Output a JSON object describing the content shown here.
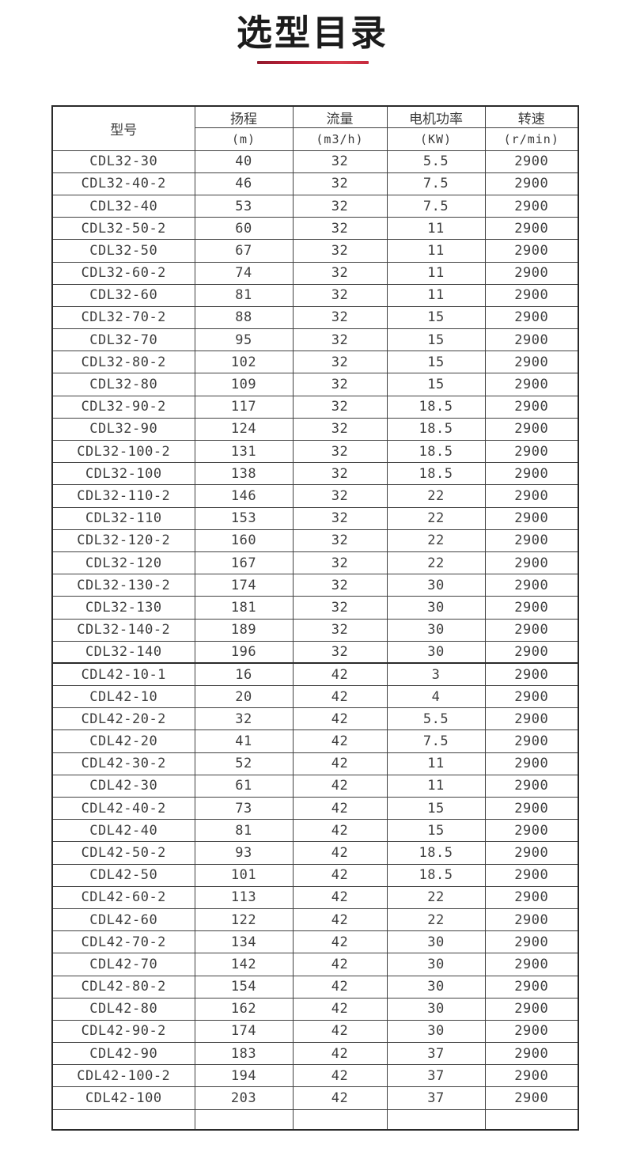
{
  "page": {
    "title": "选型目录",
    "accent_color": "#c01f38"
  },
  "table": {
    "headers": {
      "model": {
        "label": "型号"
      },
      "head": {
        "label": "扬程",
        "unit": "(m)"
      },
      "flow": {
        "label": "流量",
        "unit": "(m3/h)"
      },
      "power": {
        "label": "电机功率",
        "unit": "(KW)"
      },
      "speed": {
        "label": "转速",
        "unit": "(r/min)"
      }
    },
    "rows": [
      {
        "model": "CDL32-30",
        "head": "40",
        "flow": "32",
        "power": "5.5",
        "speed": "2900"
      },
      {
        "model": "CDL32-40-2",
        "head": "46",
        "flow": "32",
        "power": "7.5",
        "speed": "2900"
      },
      {
        "model": "CDL32-40",
        "head": "53",
        "flow": "32",
        "power": "7.5",
        "speed": "2900"
      },
      {
        "model": "CDL32-50-2",
        "head": "60",
        "flow": "32",
        "power": "11",
        "speed": "2900"
      },
      {
        "model": "CDL32-50",
        "head": "67",
        "flow": "32",
        "power": "11",
        "speed": "2900"
      },
      {
        "model": "CDL32-60-2",
        "head": "74",
        "flow": "32",
        "power": "11",
        "speed": "2900"
      },
      {
        "model": "CDL32-60",
        "head": "81",
        "flow": "32",
        "power": "11",
        "speed": "2900"
      },
      {
        "model": "CDL32-70-2",
        "head": "88",
        "flow": "32",
        "power": "15",
        "speed": "2900"
      },
      {
        "model": "CDL32-70",
        "head": "95",
        "flow": "32",
        "power": "15",
        "speed": "2900"
      },
      {
        "model": "CDL32-80-2",
        "head": "102",
        "flow": "32",
        "power": "15",
        "speed": "2900"
      },
      {
        "model": "CDL32-80",
        "head": "109",
        "flow": "32",
        "power": "15",
        "speed": "2900"
      },
      {
        "model": "CDL32-90-2",
        "head": "117",
        "flow": "32",
        "power": "18.5",
        "speed": "2900"
      },
      {
        "model": "CDL32-90",
        "head": "124",
        "flow": "32",
        "power": "18.5",
        "speed": "2900"
      },
      {
        "model": "CDL32-100-2",
        "head": "131",
        "flow": "32",
        "power": "18.5",
        "speed": "2900"
      },
      {
        "model": "CDL32-100",
        "head": "138",
        "flow": "32",
        "power": "18.5",
        "speed": "2900"
      },
      {
        "model": "CDL32-110-2",
        "head": "146",
        "flow": "32",
        "power": "22",
        "speed": "2900"
      },
      {
        "model": "CDL32-110",
        "head": "153",
        "flow": "32",
        "power": "22",
        "speed": "2900"
      },
      {
        "model": "CDL32-120-2",
        "head": "160",
        "flow": "32",
        "power": "22",
        "speed": "2900"
      },
      {
        "model": "CDL32-120",
        "head": "167",
        "flow": "32",
        "power": "22",
        "speed": "2900"
      },
      {
        "model": "CDL32-130-2",
        "head": "174",
        "flow": "32",
        "power": "30",
        "speed": "2900"
      },
      {
        "model": "CDL32-130",
        "head": "181",
        "flow": "32",
        "power": "30",
        "speed": "2900"
      },
      {
        "model": "CDL32-140-2",
        "head": "189",
        "flow": "32",
        "power": "30",
        "speed": "2900"
      },
      {
        "model": "CDL32-140",
        "head": "196",
        "flow": "32",
        "power": "30",
        "speed": "2900"
      },
      {
        "model": "CDL42-10-1",
        "head": "16",
        "flow": "42",
        "power": "3",
        "speed": "2900"
      },
      {
        "model": "CDL42-10",
        "head": "20",
        "flow": "42",
        "power": "4",
        "speed": "2900"
      },
      {
        "model": "CDL42-20-2",
        "head": "32",
        "flow": "42",
        "power": "5.5",
        "speed": "2900"
      },
      {
        "model": "CDL42-20",
        "head": "41",
        "flow": "42",
        "power": "7.5",
        "speed": "2900"
      },
      {
        "model": "CDL42-30-2",
        "head": "52",
        "flow": "42",
        "power": "11",
        "speed": "2900"
      },
      {
        "model": "CDL42-30",
        "head": "61",
        "flow": "42",
        "power": "11",
        "speed": "2900"
      },
      {
        "model": "CDL42-40-2",
        "head": "73",
        "flow": "42",
        "power": "15",
        "speed": "2900"
      },
      {
        "model": "CDL42-40",
        "head": "81",
        "flow": "42",
        "power": "15",
        "speed": "2900"
      },
      {
        "model": "CDL42-50-2",
        "head": "93",
        "flow": "42",
        "power": "18.5",
        "speed": "2900"
      },
      {
        "model": "CDL42-50",
        "head": "101",
        "flow": "42",
        "power": "18.5",
        "speed": "2900"
      },
      {
        "model": "CDL42-60-2",
        "head": "113",
        "flow": "42",
        "power": "22",
        "speed": "2900"
      },
      {
        "model": "CDL42-60",
        "head": "122",
        "flow": "42",
        "power": "22",
        "speed": "2900"
      },
      {
        "model": "CDL42-70-2",
        "head": "134",
        "flow": "42",
        "power": "30",
        "speed": "2900"
      },
      {
        "model": "CDL42-70",
        "head": "142",
        "flow": "42",
        "power": "30",
        "speed": "2900"
      },
      {
        "model": "CDL42-80-2",
        "head": "154",
        "flow": "42",
        "power": "30",
        "speed": "2900"
      },
      {
        "model": "CDL42-80",
        "head": "162",
        "flow": "42",
        "power": "30",
        "speed": "2900"
      },
      {
        "model": "CDL42-90-2",
        "head": "174",
        "flow": "42",
        "power": "30",
        "speed": "2900"
      },
      {
        "model": "CDL42-90",
        "head": "183",
        "flow": "42",
        "power": "37",
        "speed": "2900"
      },
      {
        "model": "CDL42-100-2",
        "head": "194",
        "flow": "42",
        "power": "37",
        "speed": "2900"
      },
      {
        "model": "CDL42-100",
        "head": "203",
        "flow": "42",
        "power": "37",
        "speed": "2900"
      }
    ]
  }
}
